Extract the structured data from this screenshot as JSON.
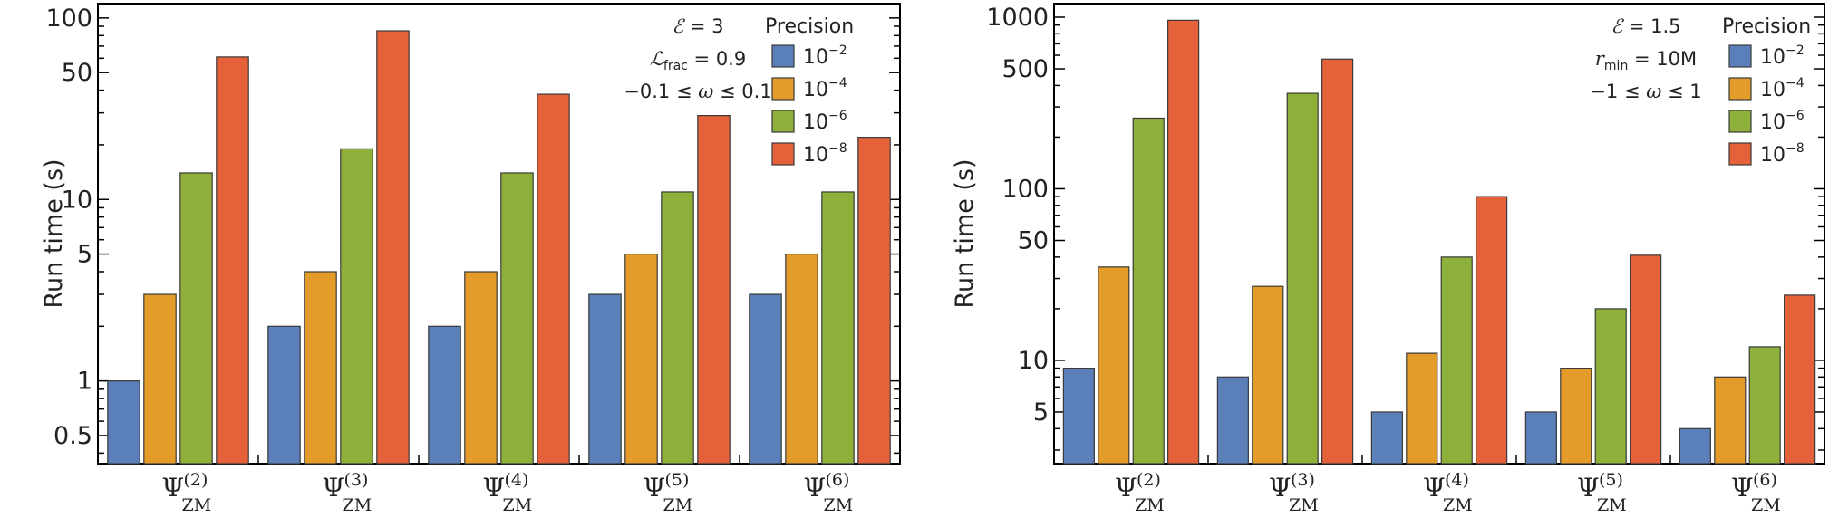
{
  "chart_data": [
    {
      "type": "bar",
      "yscale": "log",
      "ylabel": "Run time (s)",
      "ylim": [
        0.35,
        120
      ],
      "yticks_major": [
        0.5,
        1,
        5,
        10,
        50,
        100
      ],
      "ytick_labels": [
        "0.5",
        "1",
        "5",
        "10",
        "50",
        "100"
      ],
      "categories": [
        {
          "base": "Ψ",
          "sub": "ZM",
          "sup": "(2)"
        },
        {
          "base": "Ψ",
          "sub": "ZM",
          "sup": "(3)"
        },
        {
          "base": "Ψ",
          "sub": "ZM",
          "sup": "(4)"
        },
        {
          "base": "Ψ",
          "sub": "ZM",
          "sup": "(5)"
        },
        {
          "base": "Ψ",
          "sub": "ZM",
          "sup": "(6)"
        }
      ],
      "series": [
        {
          "name": "10^-2",
          "color": "#5b7fb8",
          "values": [
            1,
            2,
            2,
            3,
            3
          ]
        },
        {
          "name": "10^-4",
          "color": "#e39b2a",
          "values": [
            3,
            4,
            4,
            5,
            5
          ]
        },
        {
          "name": "10^-6",
          "color": "#8db03a",
          "values": [
            14,
            19,
            14,
            11,
            11
          ]
        },
        {
          "name": "10^-8",
          "color": "#e5613a",
          "values": [
            61,
            85,
            38,
            29,
            22
          ]
        }
      ],
      "annotations": [
        {
          "math": "ℰ",
          "text": " = 3"
        },
        {
          "math": "ℒ",
          "sub": "frac",
          "text": " = 0.9"
        },
        {
          "text": "−0.1 ≤ ",
          "math": "ω",
          "tail": " ≤ 0.1"
        }
      ],
      "legend": {
        "title": "Precision",
        "entries": [
          {
            "base": "10",
            "exp": "−2"
          },
          {
            "base": "10",
            "exp": "−4"
          },
          {
            "base": "10",
            "exp": "−6"
          },
          {
            "base": "10",
            "exp": "−8"
          }
        ],
        "position": "top-right"
      }
    },
    {
      "type": "bar",
      "yscale": "log",
      "ylabel": "Run time (s)",
      "ylim": [
        2.5,
        1200
      ],
      "yticks_major": [
        5,
        10,
        50,
        100,
        500,
        1000
      ],
      "ytick_labels": [
        "5",
        "10",
        "50",
        "100",
        "500",
        "1000"
      ],
      "categories": [
        {
          "base": "Ψ",
          "sub": "ZM",
          "sup": "(2)"
        },
        {
          "base": "Ψ",
          "sub": "ZM",
          "sup": "(3)"
        },
        {
          "base": "Ψ",
          "sub": "ZM",
          "sup": "(4)"
        },
        {
          "base": "Ψ",
          "sub": "ZM",
          "sup": "(5)"
        },
        {
          "base": "Ψ",
          "sub": "ZM",
          "sup": "(6)"
        }
      ],
      "series": [
        {
          "name": "10^-2",
          "color": "#5b7fb8",
          "values": [
            9,
            8,
            5,
            5,
            4
          ]
        },
        {
          "name": "10^-4",
          "color": "#e39b2a",
          "values": [
            35,
            27,
            11,
            9,
            8
          ]
        },
        {
          "name": "10^-6",
          "color": "#8db03a",
          "values": [
            258,
            360,
            40,
            20,
            12
          ]
        },
        {
          "name": "10^-8",
          "color": "#e5613a",
          "values": [
            960,
            570,
            90,
            41,
            24
          ]
        }
      ],
      "annotations": [
        {
          "math": "ℰ",
          "text": " = 1.5"
        },
        {
          "math": "r",
          "sub": "min",
          "text": " = 10M"
        },
        {
          "text": "−1 ≤ ",
          "math": "ω",
          "tail": " ≤ 1"
        }
      ],
      "legend": {
        "title": "Precision",
        "entries": [
          {
            "base": "10",
            "exp": "−2"
          },
          {
            "base": "10",
            "exp": "−4"
          },
          {
            "base": "10",
            "exp": "−6"
          },
          {
            "base": "10",
            "exp": "−8"
          }
        ],
        "position": "top-right"
      }
    }
  ]
}
